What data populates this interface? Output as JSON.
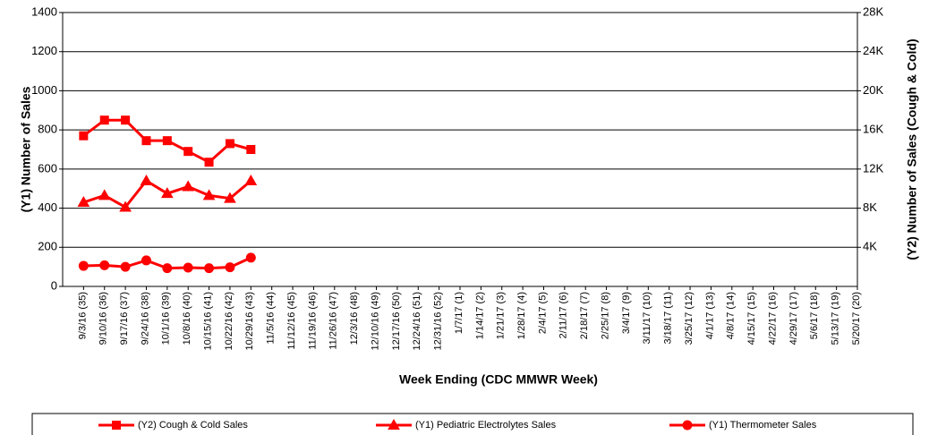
{
  "chart_data": {
    "type": "line",
    "x_label": "Week Ending (CDC MMWR Week)",
    "y_label": "(Y1) Number of Sales",
    "y2_label": "(Y2) Number of Sales (Cough & Cold)",
    "categories": [
      "9/3/16 (35)",
      "9/10/16 (36)",
      "9/17/16 (37)",
      "9/24/16 (38)",
      "10/1/16 (39)",
      "10/8/16 (40)",
      "10/15/16 (41)",
      "10/22/16 (42)",
      "10/29/16 (43)",
      "11/5/16 (44)",
      "11/12/16 (45)",
      "11/19/16 (46)",
      "11/26/16 (47)",
      "12/3/16 (48)",
      "12/10/16 (49)",
      "12/17/16 (50)",
      "12/24/16 (51)",
      "12/31/16 (52)",
      "1/7/17 (1)",
      "1/14/17 (2)",
      "1/21/17 (3)",
      "1/28/17 (4)",
      "2/4/17 (5)",
      "2/11/17 (6)",
      "2/18/17 (7)",
      "2/25/17 (8)",
      "3/4/17 (9)",
      "3/11/17 (10)",
      "3/18/17 (11)",
      "3/25/17 (12)",
      "4/1/17 (13)",
      "4/8/17 (14)",
      "4/15/17 (15)",
      "4/22/17 (16)",
      "4/29/17 (17)",
      "5/6/17 (18)",
      "5/13/17 (19)",
      "5/20/17 (20)"
    ],
    "series": [
      {
        "name": "(Y2) Cough & Cold Sales",
        "color": "#ff0000",
        "marker": "square",
        "axis": "y2",
        "values": [
          15400,
          17000,
          17000,
          14900,
          14900,
          13800,
          12700,
          14600,
          14000,
          null,
          null,
          null,
          null,
          null,
          null,
          null,
          null,
          null,
          null,
          null,
          null,
          null,
          null,
          null,
          null,
          null,
          null,
          null,
          null,
          null,
          null,
          null,
          null,
          null,
          null,
          null,
          null,
          null
        ]
      },
      {
        "name": "(Y1) Pediatric Electrolytes Sales",
        "color": "#ff0000",
        "marker": "triangle",
        "values": [
          430,
          465,
          405,
          540,
          475,
          510,
          465,
          450,
          540,
          null,
          null,
          null,
          null,
          null,
          null,
          null,
          null,
          null,
          null,
          null,
          null,
          null,
          null,
          null,
          null,
          null,
          null,
          null,
          null,
          null,
          null,
          null,
          null,
          null,
          null,
          null,
          null,
          null
        ]
      },
      {
        "name": "(Y1) Thermometer Sales",
        "color": "#ff0000",
        "marker": "circle",
        "values": [
          105,
          108,
          100,
          133,
          93,
          96,
          93,
          98,
          147,
          null,
          null,
          null,
          null,
          null,
          null,
          null,
          null,
          null,
          null,
          null,
          null,
          null,
          null,
          null,
          null,
          null,
          null,
          null,
          null,
          null,
          null,
          null,
          null,
          null,
          null,
          null,
          null,
          null
        ]
      }
    ],
    "ylim": [
      0,
      1400
    ],
    "yticks": [
      0,
      200,
      400,
      600,
      800,
      1000,
      1200,
      1400
    ],
    "y2lim": [
      0,
      28000
    ],
    "y2ticks": [
      {
        "value": 4000,
        "label": "4K"
      },
      {
        "value": 8000,
        "label": "8K"
      },
      {
        "value": 12000,
        "label": "12K"
      },
      {
        "value": 16000,
        "label": "16K"
      },
      {
        "value": 20000,
        "label": "20K"
      },
      {
        "value": 24000,
        "label": "24K"
      },
      {
        "value": 28000,
        "label": "28K"
      }
    ],
    "grid": true,
    "legend": "bottom"
  }
}
